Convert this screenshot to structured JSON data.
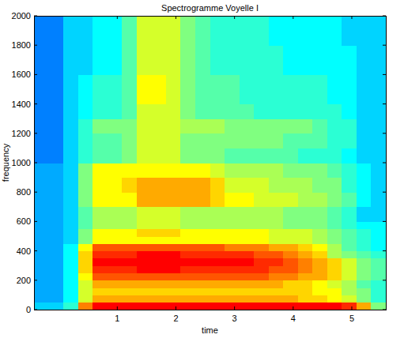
{
  "chart_data": {
    "type": "heatmap",
    "title": "Spectrogramme Voyelle I",
    "x_label": "time",
    "y_label": "frequency",
    "xlim": [
      -0.42,
      5.58
    ],
    "ylim": [
      0,
      2000
    ],
    "xticks": [
      1,
      2,
      3,
      4,
      5
    ],
    "yticks": [
      0,
      200,
      400,
      600,
      800,
      1000,
      1200,
      1400,
      1600,
      1800,
      2000
    ],
    "clim": [
      -1,
      11
    ],
    "x_edges": [
      -0.42,
      -0.17,
      0.08,
      0.33,
      0.58,
      0.83,
      1.08,
      1.33,
      1.58,
      1.83,
      2.08,
      2.33,
      2.58,
      2.83,
      3.08,
      3.33,
      3.58,
      3.83,
      4.08,
      4.33,
      4.58,
      4.83,
      5.08,
      5.33,
      5.58
    ],
    "y_edges": [
      0,
      50,
      100,
      150,
      200,
      250,
      300,
      350,
      400,
      450,
      500,
      550,
      600,
      700,
      800,
      900,
      1000,
      1100,
      1200,
      1300,
      1400,
      1600,
      1800,
      2000
    ],
    "values": [
      [
        3,
        3,
        4,
        8,
        9.5,
        9.5,
        9.5,
        9.5,
        9.5,
        9.5,
        9.5,
        9.5,
        9.5,
        9.5,
        9.5,
        9.5,
        9.5,
        9.5,
        9.5,
        9.5,
        9.5,
        9,
        7.5,
        5
      ],
      [
        2.5,
        2.5,
        3.5,
        6,
        7.5,
        7.5,
        7.5,
        7.5,
        7.5,
        7.5,
        7.5,
        7.5,
        7.5,
        7.5,
        7.5,
        7.5,
        7.5,
        7.5,
        7,
        7,
        6.5,
        6,
        5,
        4
      ],
      [
        2.5,
        2.5,
        3.5,
        6,
        7,
        7,
        7,
        7,
        7,
        7,
        7,
        7,
        7,
        7,
        7,
        7,
        7,
        7,
        7,
        6.5,
        6.5,
        5.5,
        5,
        4
      ],
      [
        2.5,
        2.5,
        3.5,
        6,
        7.5,
        7.5,
        7.5,
        7.5,
        7.5,
        7.5,
        7.5,
        7.5,
        7.5,
        7.5,
        7.5,
        7.5,
        7.5,
        7,
        7,
        6.5,
        6,
        5.5,
        4.5,
        4
      ],
      [
        2.5,
        2.5,
        3.5,
        6.5,
        8.5,
        8.5,
        8.5,
        8.5,
        8.5,
        8.5,
        8.5,
        8.5,
        8.5,
        8.5,
        8.5,
        8.5,
        8,
        8,
        7.5,
        7.5,
        7,
        6,
        5,
        4.5
      ],
      [
        2.5,
        2.5,
        3.5,
        7,
        9,
        9,
        9,
        9.5,
        9.5,
        9.5,
        9,
        9,
        9,
        9,
        9,
        9,
        8.5,
        8.5,
        8,
        7.5,
        7,
        6,
        5,
        4.5
      ],
      [
        2.5,
        2.5,
        3.5,
        7,
        9.5,
        9.5,
        9.5,
        9.5,
        9.5,
        9.5,
        9.5,
        9.5,
        9.5,
        9.5,
        9.5,
        9,
        9,
        8.5,
        8,
        7.5,
        7,
        6,
        5,
        4.5
      ],
      [
        2.5,
        2.5,
        3.5,
        7,
        9,
        9,
        9,
        9.5,
        9.5,
        9.5,
        9,
        9,
        9,
        9,
        9,
        8.5,
        8.5,
        8,
        7.5,
        7,
        5.5,
        5,
        4.5,
        4
      ],
      [
        2.5,
        2.5,
        3.5,
        6.5,
        8.5,
        8.5,
        8.5,
        8.5,
        8.5,
        8.5,
        8.5,
        8.5,
        8.5,
        8,
        8,
        8,
        7.5,
        7.5,
        7,
        6.5,
        5.5,
        4.5,
        4,
        3.5
      ],
      [
        2.5,
        2.5,
        3,
        5,
        6.5,
        6.5,
        6.5,
        6.5,
        6.5,
        6.5,
        6.5,
        6.5,
        6.5,
        6.5,
        6.5,
        6.5,
        6,
        6,
        6,
        5.5,
        5,
        4.5,
        4,
        3.5
      ],
      [
        2.5,
        2.5,
        3,
        5,
        6.5,
        6.5,
        6.5,
        7,
        7,
        7,
        6.5,
        6.5,
        6.5,
        6.5,
        6.5,
        6.5,
        6,
        6,
        6,
        5.5,
        5,
        4.5,
        4,
        3.5
      ],
      [
        2.5,
        2.5,
        3,
        4.5,
        5.5,
        5.5,
        5.5,
        6,
        6,
        6,
        5.5,
        5.5,
        5.5,
        5.5,
        5.5,
        5.5,
        5.5,
        5,
        5,
        5,
        4.5,
        4,
        3.5,
        3.5
      ],
      [
        2.5,
        2.5,
        3,
        4.5,
        5.5,
        5.5,
        5.5,
        6,
        6,
        6,
        5.5,
        5.5,
        5.5,
        5.5,
        5.5,
        5.5,
        5.5,
        5,
        5,
        5,
        4.5,
        4,
        3,
        3
      ],
      [
        2.5,
        2.5,
        3,
        5,
        6.5,
        6.5,
        6.5,
        7.5,
        7.5,
        7.5,
        7.5,
        7.5,
        7,
        6.5,
        6.5,
        6,
        6,
        6,
        5.5,
        5.5,
        5,
        4.5,
        3.5,
        3
      ],
      [
        2.5,
        2.5,
        3,
        5,
        6.5,
        6.5,
        7,
        7.5,
        7.5,
        7.5,
        7.5,
        7.5,
        7,
        6,
        6,
        6,
        5.5,
        5.5,
        5.5,
        5,
        5,
        4,
        3.5,
        3
      ],
      [
        2.5,
        2.5,
        3,
        5,
        6.5,
        6.5,
        6.5,
        6.5,
        6.5,
        6.5,
        6.5,
        6.5,
        6,
        5.5,
        5.5,
        5.5,
        5.5,
        5,
        5,
        5,
        4.5,
        4,
        3.5,
        3
      ],
      [
        2,
        2,
        3,
        4,
        4.5,
        4.5,
        5,
        6,
        6,
        6,
        5,
        5,
        5,
        4.5,
        4.5,
        4.5,
        4.5,
        4.5,
        4,
        4,
        4,
        3.5,
        3,
        3
      ],
      [
        2,
        2,
        3,
        4,
        4.5,
        4.5,
        5,
        6,
        6,
        6,
        5,
        5,
        5,
        5,
        5,
        5,
        5,
        4.5,
        4.5,
        4.5,
        4,
        4,
        3,
        3
      ],
      [
        2,
        2,
        3,
        4,
        5,
        5,
        5,
        6,
        6,
        6,
        5.5,
        5.5,
        5.5,
        5,
        5,
        5,
        5,
        5,
        5,
        4.5,
        4,
        4,
        3,
        3
      ],
      [
        2,
        2,
        3,
        3.5,
        4,
        4,
        4.5,
        6,
        6,
        6,
        5,
        4.5,
        4.5,
        4.5,
        4.5,
        4,
        4,
        4,
        4,
        4,
        4,
        3.5,
        3,
        3
      ],
      [
        2,
        2,
        3,
        3.5,
        4,
        4,
        4.5,
        6.5,
        6.5,
        6,
        5,
        4.5,
        4.5,
        4.5,
        4,
        4,
        4,
        4,
        4,
        4,
        3.5,
        3.5,
        3,
        3
      ],
      [
        2,
        2,
        3,
        3,
        3.5,
        3.5,
        4.5,
        6,
        6,
        6,
        5,
        4.5,
        4,
        4,
        4,
        4,
        4,
        3.5,
        3.5,
        3.5,
        3.5,
        3.5,
        3,
        3
      ],
      [
        2,
        2,
        3,
        3,
        3.5,
        3.5,
        4.5,
        6,
        6,
        6,
        5,
        4.5,
        4,
        4,
        4,
        4,
        3.5,
        3.5,
        3.5,
        3.5,
        3.5,
        3,
        3,
        3
      ]
    ]
  }
}
